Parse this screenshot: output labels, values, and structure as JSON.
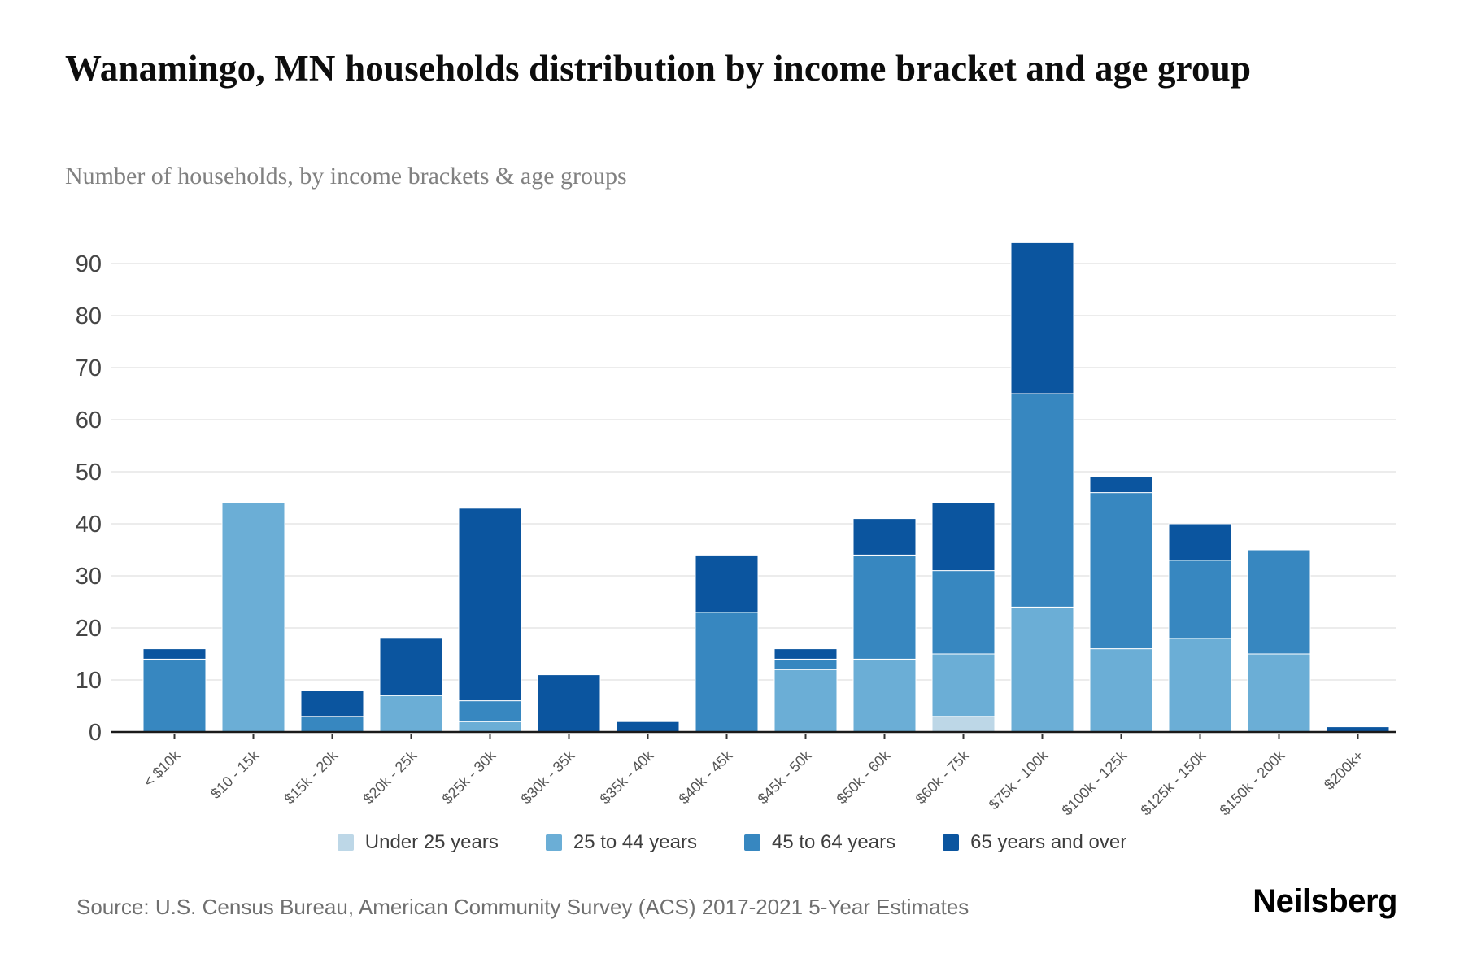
{
  "header": {
    "title": "Wanamingo, MN households distribution by income bracket and age group",
    "subtitle": "Number of households, by income brackets & age groups"
  },
  "footer": {
    "source": "Source: U.S. Census Bureau, American Community Survey (ACS) 2017-2021 5-Year Estimates",
    "brand": "Neilsberg"
  },
  "chart_data": {
    "type": "bar",
    "stacked": true,
    "title": "Wanamingo, MN households distribution by income bracket and age group",
    "xlabel": "",
    "ylabel": "Number of households",
    "categories": [
      "< $10k",
      "$10 - 15k",
      "$15k - 20k",
      "$20k - 25k",
      "$25k - 30k",
      "$30k - 35k",
      "$35k - 40k",
      "$40k - 45k",
      "$45k - 50k",
      "$50k - 60k",
      "$60k - 75k",
      "$75k - 100k",
      "$100k - 125k",
      "$125k - 150k",
      "$150k - 200k",
      "$200k+"
    ],
    "series": [
      {
        "name": "Under 25 years",
        "color": "#bdd7e7",
        "values": [
          0,
          0,
          0,
          0,
          0,
          0,
          0,
          0,
          0,
          0,
          3,
          0,
          0,
          0,
          0,
          0
        ]
      },
      {
        "name": "25 to 44 years",
        "color": "#6baed6",
        "values": [
          0,
          44,
          0,
          7,
          2,
          0,
          0,
          0,
          12,
          14,
          12,
          24,
          16,
          18,
          15,
          0
        ]
      },
      {
        "name": "45 to 64 years",
        "color": "#3787c0",
        "values": [
          14,
          0,
          3,
          0,
          4,
          0,
          0,
          23,
          2,
          20,
          16,
          41,
          30,
          15,
          20,
          0
        ]
      },
      {
        "name": "65 years and over",
        "color": "#0b559f",
        "values": [
          2,
          0,
          5,
          11,
          37,
          11,
          2,
          11,
          2,
          7,
          13,
          29,
          3,
          7,
          0,
          1
        ]
      }
    ],
    "totals": [
      16,
      44,
      8,
      18,
      43,
      11,
      2,
      34,
      16,
      41,
      44,
      94,
      49,
      40,
      35,
      1
    ],
    "ylim": [
      0,
      94
    ],
    "yticks": [
      0,
      10,
      20,
      30,
      40,
      50,
      60,
      70,
      80,
      90
    ],
    "grid": "horizontal",
    "legend_position": "bottom",
    "colors": {
      "grid_line": "#ececec",
      "axis_line": "#1a1a1a",
      "y_tick_label": "#454545",
      "x_tick_label": "#565656",
      "tick_mark": "#333333",
      "segment_separator": "#ffffff"
    }
  }
}
